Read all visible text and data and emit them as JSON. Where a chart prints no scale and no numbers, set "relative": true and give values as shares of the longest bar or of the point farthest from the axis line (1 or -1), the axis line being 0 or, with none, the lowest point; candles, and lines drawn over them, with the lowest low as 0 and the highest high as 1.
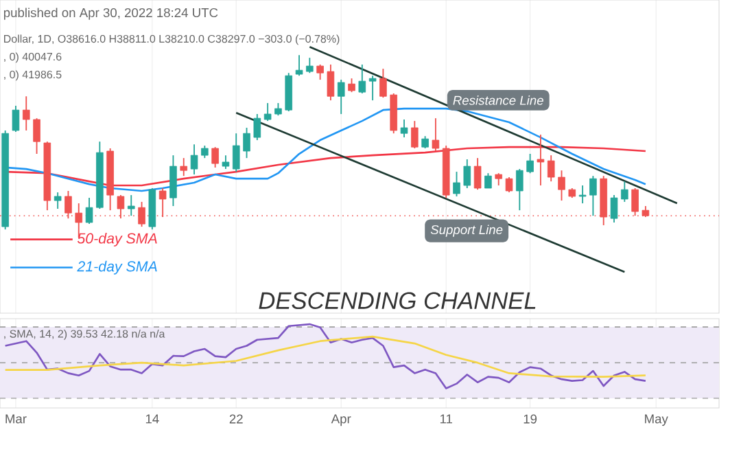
{
  "chart_data": [
    {
      "type": "candlestick",
      "relative": true,
      "annotations": [
        "published on Apr 30, 2022 18:24 UTC",
        "Dollar, 1D, O38616.0 H38811.0 L38210.0 C38297.0 −303.0 (−0.78%)",
        ", 0) 40047.6",
        ", 0) 41986.5",
        "Resistance Line",
        "Support Line",
        "DESCENDING CHANNEL"
      ],
      "x": [
        "2022-02-28",
        "2022-03-01",
        "2022-03-02",
        "2022-03-03",
        "2022-03-04",
        "2022-03-05",
        "2022-03-06",
        "2022-03-07",
        "2022-03-08",
        "2022-03-09",
        "2022-03-10",
        "2022-03-11",
        "2022-03-12",
        "2022-03-13",
        "2022-03-14",
        "2022-03-15",
        "2022-03-16",
        "2022-03-17",
        "2022-03-18",
        "2022-03-19",
        "2022-03-20",
        "2022-03-21",
        "2022-03-22",
        "2022-03-23",
        "2022-03-24",
        "2022-03-25",
        "2022-03-26",
        "2022-03-27",
        "2022-03-28",
        "2022-03-29",
        "2022-03-30",
        "2022-03-31",
        "2022-04-01",
        "2022-04-02",
        "2022-04-03",
        "2022-04-04",
        "2022-04-05",
        "2022-04-06",
        "2022-04-07",
        "2022-04-08",
        "2022-04-09",
        "2022-04-10",
        "2022-04-11",
        "2022-04-12",
        "2022-04-13",
        "2022-04-14",
        "2022-04-15",
        "2022-04-16",
        "2022-04-17",
        "2022-04-18",
        "2022-04-19",
        "2022-04-20",
        "2022-04-21",
        "2022-04-22",
        "2022-04-23",
        "2022-04-24",
        "2022-04-25",
        "2022-04-26",
        "2022-04-27",
        "2022-04-28",
        "2022-04-29",
        "2022-04-30"
      ],
      "ohlc": [
        [
          0.06,
          0.587,
          0.045,
          0.571
        ],
        [
          0.587,
          0.722,
          0.579,
          0.699
        ],
        [
          0.699,
          0.774,
          0.587,
          0.647
        ],
        [
          0.647,
          0.654,
          0.459,
          0.526
        ],
        [
          0.519,
          0.526,
          0.15,
          0.203
        ],
        [
          0.203,
          0.248,
          0.158,
          0.226
        ],
        [
          0.226,
          0.256,
          0.105,
          0.135
        ],
        [
          0.135,
          0.188,
          0,
          0.083
        ],
        [
          0.083,
          0.218,
          0.075,
          0.165
        ],
        [
          0.165,
          0.526,
          0.158,
          0.466
        ],
        [
          0.474,
          0.489,
          0.15,
          0.233
        ],
        [
          0.226,
          0.233,
          0.105,
          0.158
        ],
        [
          0.158,
          0.233,
          0.12,
          0.173
        ],
        [
          0.165,
          0.196,
          0.06,
          0.075
        ],
        [
          0.06,
          0.271,
          0.045,
          0.263
        ],
        [
          0.256,
          0.271,
          0.113,
          0.211
        ],
        [
          0.218,
          0.451,
          0.173,
          0.391
        ],
        [
          0.391,
          0.436,
          0.338,
          0.368
        ],
        [
          0.376,
          0.511,
          0.346,
          0.451
        ],
        [
          0.451,
          0.504,
          0.436,
          0.489
        ],
        [
          0.489,
          0.496,
          0.384,
          0.406
        ],
        [
          0.391,
          0.451,
          0.376,
          0.414
        ],
        [
          0.376,
          0.571,
          0.361,
          0.504
        ],
        [
          0.474,
          0.602,
          0.436,
          0.571
        ],
        [
          0.549,
          0.677,
          0.534,
          0.654
        ],
        [
          0.647,
          0.737,
          0.639,
          0.677
        ],
        [
          0.677,
          0.737,
          0.669,
          0.707
        ],
        [
          0.699,
          0.902,
          0.692,
          0.887
        ],
        [
          0.895,
          1,
          0.887,
          0.917
        ],
        [
          0.91,
          0.985,
          0.902,
          0.94
        ],
        [
          0.94,
          0.948,
          0.865,
          0.902
        ],
        [
          0.91,
          0.948,
          0.752,
          0.774
        ],
        [
          0.774,
          0.865,
          0.677,
          0.85
        ],
        [
          0.842,
          0.872,
          0.797,
          0.805
        ],
        [
          0.797,
          0.948,
          0.79,
          0.857
        ],
        [
          0.857,
          0.887,
          0.752,
          0.872
        ],
        [
          0.872,
          0.925,
          0.767,
          0.774
        ],
        [
          0.782,
          0.79,
          0.571,
          0.587
        ],
        [
          0.571,
          0.647,
          0.549,
          0.602
        ],
        [
          0.602,
          0.639,
          0.489,
          0.496
        ],
        [
          0.496,
          0.556,
          0.489,
          0.541
        ],
        [
          0.534,
          0.654,
          0.474,
          0.489
        ],
        [
          0.489,
          0.504,
          0.218,
          0.233
        ],
        [
          0.241,
          0.361,
          0.226,
          0.301
        ],
        [
          0.286,
          0.429,
          0.271,
          0.391
        ],
        [
          0.391,
          0.436,
          0.263,
          0.271
        ],
        [
          0.271,
          0.353,
          0.271,
          0.338
        ],
        [
          0.346,
          0.353,
          0.286,
          0.323
        ],
        [
          0.323,
          0.331,
          0.248,
          0.256
        ],
        [
          0.256,
          0.376,
          0.15,
          0.368
        ],
        [
          0.361,
          0.459,
          0.353,
          0.421
        ],
        [
          0.429,
          0.564,
          0.286,
          0.414
        ],
        [
          0.421,
          0.451,
          0.308,
          0.331
        ],
        [
          0.331,
          0.368,
          0.203,
          0.263
        ],
        [
          0.263,
          0.271,
          0.218,
          0.226
        ],
        [
          0.226,
          0.286,
          0.188,
          0.233
        ],
        [
          0.233,
          0.338,
          0.12,
          0.323
        ],
        [
          0.323,
          0.338,
          0.068,
          0.113
        ],
        [
          0.105,
          0.233,
          0.083,
          0.218
        ],
        [
          0.211,
          0.308,
          0.196,
          0.263
        ],
        [
          0.263,
          0.271,
          0.12,
          0.143
        ],
        [
          0.15,
          0.173,
          0.113,
          0.12
        ]
      ],
      "colors": [
        "#26a69a",
        "#26a69a",
        "#ef5350",
        "#ef5350",
        "#ef5350",
        "#26a69a",
        "#ef5350",
        "#ef5350",
        "#26a69a",
        "#26a69a",
        "#ef5350",
        "#ef5350",
        "#26a69a",
        "#ef5350",
        "#26a69a",
        "#ef5350",
        "#26a69a",
        "#ef5350",
        "#26a69a",
        "#26a69a",
        "#ef5350",
        "#26a69a",
        "#26a69a",
        "#26a69a",
        "#26a69a",
        "#26a69a",
        "#26a69a",
        "#26a69a",
        "#26a69a",
        "#26a69a",
        "#ef5350",
        "#ef5350",
        "#26a69a",
        "#ef5350",
        "#26a69a",
        "#26a69a",
        "#ef5350",
        "#ef5350",
        "#26a69a",
        "#ef5350",
        "#26a69a",
        "#ef5350",
        "#ef5350",
        "#26a69a",
        "#26a69a",
        "#ef5350",
        "#26a69a",
        "#ef5350",
        "#ef5350",
        "#26a69a",
        "#26a69a",
        "#ef5350",
        "#ef5350",
        "#ef5350",
        "#ef5350",
        "#26a69a",
        "#26a69a",
        "#ef5350",
        "#26a69a",
        "#26a69a",
        "#ef5350",
        "#ef5350"
      ],
      "series": [
        {
          "type": "line",
          "name": "50-day SMA",
          "color": "#f23645",
          "x": [
            "2022-02-28",
            "2022-03-04",
            "2022-03-08",
            "2022-03-10",
            "2022-03-13",
            "2022-03-17",
            "2022-03-20",
            "2022-03-22",
            "2022-03-26",
            "2022-03-31",
            "2022-04-04",
            "2022-04-09",
            "2022-04-13",
            "2022-04-17",
            "2022-04-22",
            "2022-04-26",
            "2022-04-30"
          ],
          "values": [
            0.361,
            0.353,
            0.308,
            0.286,
            0.286,
            0.323,
            0.346,
            0.361,
            0.399,
            0.436,
            0.451,
            0.466,
            0.489,
            0.496,
            0.496,
            0.489,
            0.474
          ]
        },
        {
          "type": "line",
          "name": "21-day SMA",
          "color": "#2196f3",
          "x": [
            "2022-02-28",
            "2022-03-02",
            "2022-03-04",
            "2022-03-06",
            "2022-03-08",
            "2022-03-10",
            "2022-03-13",
            "2022-03-15",
            "2022-03-18",
            "2022-03-20",
            "2022-03-22",
            "2022-03-25",
            "2022-03-26",
            "2022-03-28",
            "2022-03-30",
            "2022-04-01",
            "2022-04-03",
            "2022-04-05",
            "2022-04-07",
            "2022-04-11",
            "2022-04-13",
            "2022-04-17",
            "2022-04-20",
            "2022-04-23",
            "2022-04-26",
            "2022-04-29",
            "2022-04-30"
          ],
          "values": [
            0.384,
            0.376,
            0.353,
            0.323,
            0.293,
            0.271,
            0.256,
            0.271,
            0.301,
            0.346,
            0.323,
            0.323,
            0.353,
            0.459,
            0.534,
            0.587,
            0.639,
            0.699,
            0.707,
            0.707,
            0.692,
            0.632,
            0.549,
            0.459,
            0.376,
            0.316,
            0.293
          ]
        },
        {
          "type": "line",
          "color": "#1e3b33",
          "x": [
            "2022-03-29",
            "2022-05-03"
          ],
          "values": [
            1.045,
            0.188
          ]
        },
        {
          "type": "line",
          "color": "#1e3b33",
          "x": [
            "2022-03-22",
            "2022-04-28"
          ],
          "values": [
            0.684,
            -0.188
          ]
        }
      ],
      "ref_lines": [
        {
          "axis": "y",
          "value": 0.12,
          "color": "#ef5350",
          "line_style": "dotted"
        }
      ],
      "xlim": [
        "2022-02-27T12:00",
        "2022-05-07"
      ],
      "xticks": [
        {
          "value": "2022-03-01",
          "label": null
        },
        {
          "value": "2022-03-14",
          "label": null
        },
        {
          "value": "2022-03-22",
          "label": null
        },
        {
          "value": "2022-04-01",
          "label": null
        },
        {
          "value": "2022-04-11",
          "label": null
        },
        {
          "value": "2022-04-19",
          "label": null
        },
        {
          "value": "2022-05-01",
          "label": null
        }
      ],
      "grid": "x",
      "legend": "bottom left",
      "tick_labels": false
    },
    {
      "type": "line",
      "relative": true,
      "annotations": [
        ", SMA, 14, 2) 39.53 42.18 n/a n/a"
      ],
      "series": [
        {
          "color": "#7e57c2",
          "x": [
            "2022-02-28",
            "2022-03-02",
            "2022-03-03",
            "2022-03-04",
            "2022-03-05",
            "2022-03-06",
            "2022-03-07",
            "2022-03-08",
            "2022-03-09",
            "2022-03-10",
            "2022-03-11",
            "2022-03-12",
            "2022-03-13",
            "2022-03-14",
            "2022-03-15",
            "2022-03-16",
            "2022-03-17",
            "2022-03-18",
            "2022-03-19",
            "2022-03-20",
            "2022-03-21",
            "2022-03-22",
            "2022-03-23",
            "2022-03-24",
            "2022-03-26",
            "2022-03-27",
            "2022-03-29",
            "2022-03-30",
            "2022-03-31",
            "2022-04-01",
            "2022-04-02",
            "2022-04-03",
            "2022-04-04",
            "2022-04-05",
            "2022-04-06",
            "2022-04-07",
            "2022-04-08",
            "2022-04-09",
            "2022-04-10",
            "2022-04-11",
            "2022-04-12",
            "2022-04-13",
            "2022-04-14",
            "2022-04-15",
            "2022-04-16",
            "2022-04-17",
            "2022-04-18",
            "2022-04-19",
            "2022-04-20",
            "2022-04-21",
            "2022-04-22",
            "2022-04-23",
            "2022-04-24",
            "2022-04-25",
            "2022-04-26",
            "2022-04-27",
            "2022-04-28",
            "2022-04-29",
            "2022-04-30"
          ],
          "values": [
            0.742,
            0.798,
            0.66,
            0.458,
            0.47,
            0.415,
            0.388,
            0.442,
            0.644,
            0.497,
            0.458,
            0.458,
            0.415,
            0.524,
            0.508,
            0.622,
            0.618,
            0.677,
            0.705,
            0.618,
            0.606,
            0.705,
            0.742,
            0.814,
            0.836,
            0.978,
            1,
            0.962,
            0.781,
            0.824,
            0.781,
            0.814,
            0.836,
            0.742,
            0.487,
            0.508,
            0.415,
            0.458,
            0.415,
            0.234,
            0.29,
            0.398,
            0.306,
            0.372,
            0.36,
            0.306,
            0.426,
            0.487,
            0.47,
            0.388,
            0.343,
            0.323,
            0.332,
            0.442,
            0.262,
            0.388,
            0.431,
            0.343,
            0.323
          ]
        },
        {
          "color": "#f5d547",
          "x": [
            "2022-02-28",
            "2022-03-04",
            "2022-03-09",
            "2022-03-13",
            "2022-03-17",
            "2022-03-22",
            "2022-03-26",
            "2022-03-30",
            "2022-04-04",
            "2022-04-08",
            "2022-04-11",
            "2022-04-14",
            "2022-04-17",
            "2022-04-21",
            "2022-04-26",
            "2022-04-30"
          ],
          "values": [
            0.454,
            0.454,
            0.508,
            0.54,
            0.508,
            0.562,
            0.688,
            0.798,
            0.852,
            0.77,
            0.634,
            0.54,
            0.415,
            0.376,
            0.372,
            0.388
          ]
        }
      ],
      "bands": [
        {
          "axis": "y",
          "from": 0.115,
          "to": 0.967,
          "color": "#efeaf8"
        }
      ],
      "ref_lines": [
        {
          "axis": "y",
          "value": 0.967,
          "color": "#9e9e9e",
          "line_style": "dashed"
        },
        {
          "axis": "y",
          "value": 0.54,
          "color": "#9e9e9e",
          "line_style": "dashed"
        },
        {
          "axis": "y",
          "value": 0.115,
          "color": "#9e9e9e",
          "line_style": "dashed"
        }
      ],
      "xlim": [
        "2022-02-27T12:00",
        "2022-05-07"
      ],
      "xticks": [
        {
          "value": "2022-03-01",
          "label": "Mar"
        },
        {
          "value": "2022-03-14",
          "label": "14"
        },
        {
          "value": "2022-03-22",
          "label": "22"
        },
        {
          "value": "2022-04-01",
          "label": "Apr"
        },
        {
          "value": "2022-04-11",
          "label": "11"
        },
        {
          "value": "2022-04-19",
          "label": "19"
        },
        {
          "value": "2022-05-01",
          "label": "May"
        }
      ],
      "grid": "x",
      "tick_labels": "x"
    }
  ]
}
